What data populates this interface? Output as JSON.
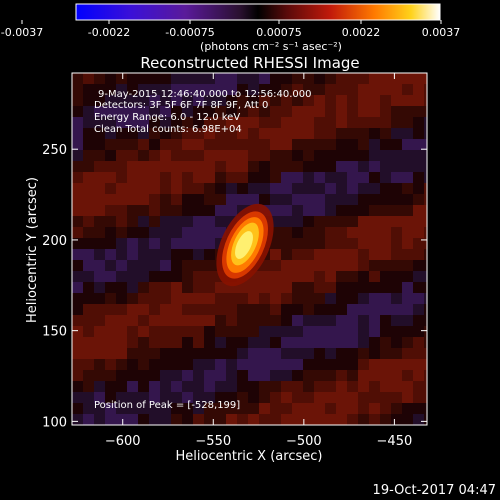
{
  "colorbar": {
    "ticks": [
      "-0.0037",
      "-0.0022",
      "-0.00075",
      "0.00075",
      "0.0022",
      "0.0037"
    ],
    "unit": "(photons cm⁻² s⁻¹ asec⁻²)",
    "range": [
      -0.0037,
      0.0037
    ]
  },
  "chart_data": {
    "type": "heatmap",
    "title": "Reconstructed RHESSI Image",
    "xlabel": "Heliocentric X (arcsec)",
    "ylabel": "Heliocentric Y (arcsec)",
    "xlim": [
      -628,
      -432
    ],
    "ylim": [
      98,
      292
    ],
    "x_ticks": [
      -600,
      -550,
      -500,
      -450
    ],
    "y_ticks": [
      100,
      150,
      200,
      250
    ],
    "x_tick_labels": [
      "−600",
      "−550",
      "−500",
      "−450"
    ],
    "y_tick_labels": [
      "100",
      "150",
      "200",
      "250"
    ],
    "peak": {
      "x": -528,
      "y": 199
    },
    "info_lines": [
      "9-May-2015 12:46:40.000 to 12:56:40.000",
      "Detectors: 3F 5F 6F 7F 8F 9F, Att 0",
      "Energy Range: 6.0 - 12.0 keV",
      "Clean    Total counts: 6.98E+04"
    ],
    "peak_label": "Position of Peak = [-528,199]"
  },
  "footer": {
    "timestamp": "19-Oct-2017 04:47"
  }
}
